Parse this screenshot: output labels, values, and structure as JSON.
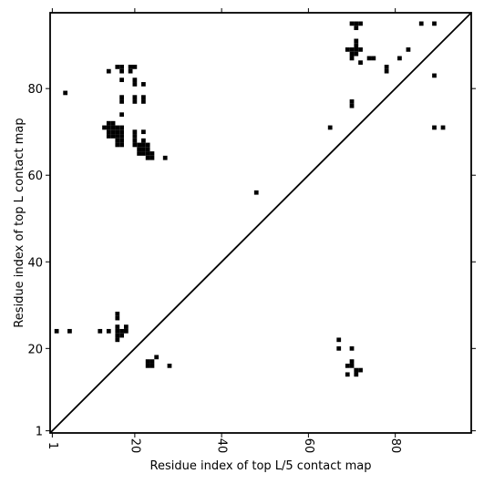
{
  "chart_data": {
    "type": "heatmap",
    "title": "",
    "xlabel": "Residue index of top L/5 contact map",
    "ylabel": "Residue index of top L contact map",
    "xlim": [
      0.5,
      97.5
    ],
    "ylim": [
      0.5,
      97.5
    ],
    "x_ticks": [
      1,
      20,
      40,
      60,
      80
    ],
    "y_ticks": [
      1,
      20,
      40,
      60,
      80
    ],
    "x_tick_labels": [
      "1",
      "20",
      "40",
      "60",
      "80"
    ],
    "y_tick_labels": [
      "1",
      "20",
      "40",
      "60",
      "80"
    ],
    "cell_color": "#000000",
    "diagonal": true,
    "upper_triangle_contacts": [
      [
        4,
        79
      ],
      [
        14,
        84
      ],
      [
        16,
        85
      ],
      [
        17,
        85
      ],
      [
        17,
        84
      ],
      [
        19,
        85
      ],
      [
        20,
        85
      ],
      [
        19,
        84
      ],
      [
        17,
        82
      ],
      [
        20,
        82
      ],
      [
        20,
        81
      ],
      [
        22,
        81
      ],
      [
        17,
        78
      ],
      [
        17,
        77
      ],
      [
        20,
        78
      ],
      [
        20,
        77
      ],
      [
        22,
        78
      ],
      [
        22,
        77
      ],
      [
        17,
        74
      ],
      [
        13,
        71
      ],
      [
        14,
        72
      ],
      [
        15,
        72
      ],
      [
        14,
        71
      ],
      [
        15,
        71
      ],
      [
        16,
        71
      ],
      [
        17,
        71
      ],
      [
        14,
        70
      ],
      [
        15,
        70
      ],
      [
        16,
        70
      ],
      [
        17,
        70
      ],
      [
        14,
        69
      ],
      [
        15,
        69
      ],
      [
        16,
        69
      ],
      [
        17,
        69
      ],
      [
        16,
        68
      ],
      [
        17,
        68
      ],
      [
        16,
        67
      ],
      [
        17,
        67
      ],
      [
        20,
        70
      ],
      [
        22,
        70
      ],
      [
        20,
        69
      ],
      [
        20,
        68
      ],
      [
        22,
        68
      ],
      [
        20,
        67
      ],
      [
        21,
        67
      ],
      [
        22,
        67
      ],
      [
        23,
        67
      ],
      [
        21,
        66
      ],
      [
        22,
        66
      ],
      [
        23,
        66
      ],
      [
        21,
        65
      ],
      [
        22,
        65
      ],
      [
        23,
        65
      ],
      [
        23,
        64
      ],
      [
        24,
        64
      ],
      [
        24,
        65
      ],
      [
        27,
        64
      ],
      [
        48,
        56
      ],
      [
        65,
        71
      ],
      [
        70,
        95
      ],
      [
        71,
        95
      ],
      [
        72,
        95
      ],
      [
        71,
        94
      ],
      [
        71,
        91
      ],
      [
        71,
        90
      ],
      [
        69,
        89
      ],
      [
        70,
        89
      ],
      [
        71,
        89
      ],
      [
        72,
        89
      ],
      [
        70,
        88
      ],
      [
        71,
        88
      ],
      [
        70,
        87
      ],
      [
        72,
        86
      ],
      [
        74,
        87
      ],
      [
        75,
        87
      ],
      [
        70,
        77
      ],
      [
        70,
        76
      ],
      [
        78,
        85
      ],
      [
        78,
        84
      ],
      [
        81,
        87
      ],
      [
        83,
        89
      ],
      [
        86,
        95
      ],
      [
        89,
        95
      ],
      [
        89,
        83
      ],
      [
        89,
        71
      ],
      [
        91,
        71
      ]
    ],
    "lower_triangle_contacts": [
      [
        2,
        24
      ],
      [
        5,
        24
      ],
      [
        12,
        24
      ],
      [
        14,
        24
      ],
      [
        16,
        28
      ],
      [
        16,
        27
      ],
      [
        16,
        25
      ],
      [
        16,
        24
      ],
      [
        16,
        23
      ],
      [
        16,
        22
      ],
      [
        17,
        24
      ],
      [
        17,
        23
      ],
      [
        18,
        25
      ],
      [
        18,
        24
      ],
      [
        23,
        17
      ],
      [
        24,
        17
      ],
      [
        23,
        16
      ],
      [
        24,
        16
      ],
      [
        25,
        18
      ],
      [
        28,
        16
      ],
      [
        67,
        22
      ],
      [
        67,
        20
      ],
      [
        70,
        20
      ],
      [
        69,
        16
      ],
      [
        70,
        16
      ],
      [
        70,
        17
      ],
      [
        69,
        14
      ],
      [
        71,
        15
      ],
      [
        72,
        15
      ],
      [
        71,
        14
      ]
    ]
  }
}
